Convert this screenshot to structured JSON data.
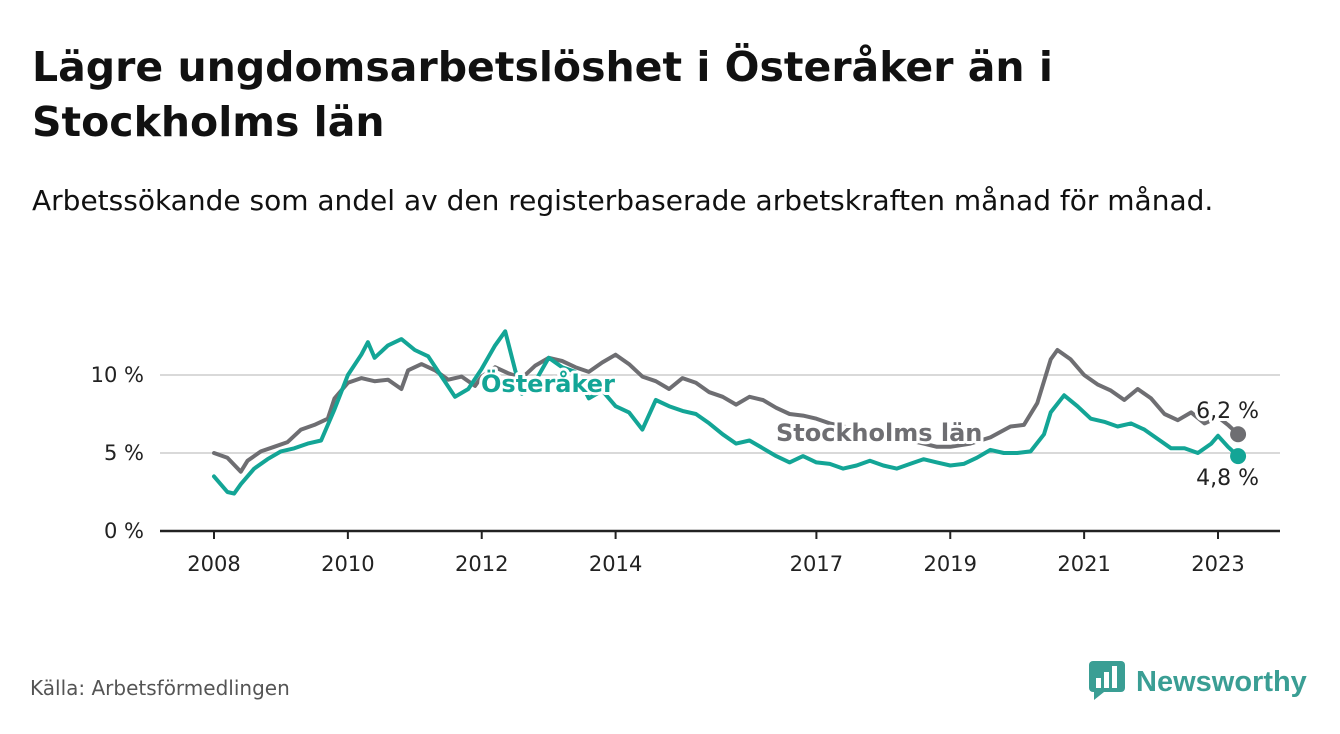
{
  "title": "Lägre ungdomsarbetslöshet i Österåker än i Stockholms län",
  "subtitle": "Arbetssökande som andel av den registerbaserade arbetskraften månad för månad.",
  "source": "Källa: Arbetsförmedlingen",
  "brand": {
    "name": "Newsworthy",
    "icon": "bar-chart-logo-icon",
    "color": "#3a9e94"
  },
  "colors": {
    "stockholm": "#6e6e72",
    "osteraker": "#13a596",
    "grid": "#d9d9d9",
    "axis": "#222222"
  },
  "chart_data": {
    "type": "line",
    "title": "Lägre ungdomsarbetslöshet i Österåker än i Stockholms län",
    "xlabel": "",
    "ylabel": "",
    "ylim": [
      0,
      14
    ],
    "xlim": [
      2008.0,
      2023.9
    ],
    "yticks": [
      {
        "value": 0,
        "label": "0 %"
      },
      {
        "value": 5,
        "label": "5 %"
      },
      {
        "value": 10,
        "label": "10 %"
      }
    ],
    "xticks": [
      {
        "value": 2008.0,
        "label": "2008"
      },
      {
        "value": 2010.0,
        "label": "2010"
      },
      {
        "value": 2012.0,
        "label": "2012"
      },
      {
        "value": 2014.0,
        "label": "2014"
      },
      {
        "value": 2017.0,
        "label": "2017"
      },
      {
        "value": 2019.0,
        "label": "2019"
      },
      {
        "value": 2021.0,
        "label": "2021"
      },
      {
        "value": 2023.0,
        "label": "2023"
      }
    ],
    "series": [
      {
        "name": "Stockholms län",
        "label": "Stockholms län",
        "end_label": "6,2 %",
        "end_value": 6.2,
        "points": [
          [
            2008.0,
            5.0
          ],
          [
            2008.2,
            4.7
          ],
          [
            2008.4,
            3.8
          ],
          [
            2008.5,
            4.5
          ],
          [
            2008.7,
            5.1
          ],
          [
            2008.9,
            5.4
          ],
          [
            2009.1,
            5.7
          ],
          [
            2009.3,
            6.5
          ],
          [
            2009.5,
            6.8
          ],
          [
            2009.7,
            7.2
          ],
          [
            2009.8,
            8.5
          ],
          [
            2010.0,
            9.5
          ],
          [
            2010.2,
            9.8
          ],
          [
            2010.4,
            9.6
          ],
          [
            2010.6,
            9.7
          ],
          [
            2010.8,
            9.1
          ],
          [
            2010.9,
            10.3
          ],
          [
            2011.1,
            10.7
          ],
          [
            2011.3,
            10.3
          ],
          [
            2011.5,
            9.7
          ],
          [
            2011.7,
            9.9
          ],
          [
            2011.9,
            9.3
          ],
          [
            2012.0,
            9.9
          ],
          [
            2012.2,
            10.5
          ],
          [
            2012.4,
            10.1
          ],
          [
            2012.6,
            9.8
          ],
          [
            2012.8,
            10.6
          ],
          [
            2013.0,
            11.1
          ],
          [
            2013.2,
            10.9
          ],
          [
            2013.4,
            10.5
          ],
          [
            2013.6,
            10.2
          ],
          [
            2013.8,
            10.8
          ],
          [
            2014.0,
            11.3
          ],
          [
            2014.2,
            10.7
          ],
          [
            2014.4,
            9.9
          ],
          [
            2014.6,
            9.6
          ],
          [
            2014.8,
            9.1
          ],
          [
            2015.0,
            9.8
          ],
          [
            2015.2,
            9.5
          ],
          [
            2015.4,
            8.9
          ],
          [
            2015.6,
            8.6
          ],
          [
            2015.8,
            8.1
          ],
          [
            2016.0,
            8.6
          ],
          [
            2016.2,
            8.4
          ],
          [
            2016.4,
            7.9
          ],
          [
            2016.6,
            7.5
          ],
          [
            2016.8,
            7.4
          ],
          [
            2017.0,
            7.2
          ],
          [
            2017.2,
            6.9
          ],
          [
            2017.4,
            6.7
          ],
          [
            2017.6,
            6.5
          ],
          [
            2017.8,
            6.3
          ],
          [
            2018.0,
            6.1
          ],
          [
            2018.2,
            5.9
          ],
          [
            2018.4,
            5.8
          ],
          [
            2018.6,
            5.6
          ],
          [
            2018.8,
            5.4
          ],
          [
            2019.0,
            5.4
          ],
          [
            2019.3,
            5.6
          ],
          [
            2019.6,
            6.0
          ],
          [
            2019.9,
            6.7
          ],
          [
            2020.1,
            6.8
          ],
          [
            2020.3,
            8.2
          ],
          [
            2020.5,
            11.0
          ],
          [
            2020.6,
            11.6
          ],
          [
            2020.8,
            11.0
          ],
          [
            2021.0,
            10.0
          ],
          [
            2021.2,
            9.4
          ],
          [
            2021.4,
            9.0
          ],
          [
            2021.6,
            8.4
          ],
          [
            2021.8,
            9.1
          ],
          [
            2022.0,
            8.5
          ],
          [
            2022.2,
            7.5
          ],
          [
            2022.4,
            7.1
          ],
          [
            2022.6,
            7.6
          ],
          [
            2022.8,
            6.9
          ],
          [
            2023.0,
            7.3
          ],
          [
            2023.15,
            6.8
          ],
          [
            2023.3,
            6.2
          ]
        ]
      },
      {
        "name": "Österåker",
        "label": "Österåker",
        "end_label": "4,8 %",
        "end_value": 4.8,
        "points": [
          [
            2008.0,
            3.5
          ],
          [
            2008.2,
            2.5
          ],
          [
            2008.3,
            2.4
          ],
          [
            2008.4,
            3.0
          ],
          [
            2008.6,
            4.0
          ],
          [
            2008.8,
            4.6
          ],
          [
            2009.0,
            5.1
          ],
          [
            2009.2,
            5.3
          ],
          [
            2009.4,
            5.6
          ],
          [
            2009.6,
            5.8
          ],
          [
            2009.8,
            7.8
          ],
          [
            2010.0,
            10.0
          ],
          [
            2010.2,
            11.3
          ],
          [
            2010.3,
            12.1
          ],
          [
            2010.4,
            11.1
          ],
          [
            2010.6,
            11.9
          ],
          [
            2010.8,
            12.3
          ],
          [
            2011.0,
            11.6
          ],
          [
            2011.2,
            11.2
          ],
          [
            2011.4,
            9.9
          ],
          [
            2011.6,
            8.6
          ],
          [
            2011.8,
            9.1
          ],
          [
            2012.0,
            10.4
          ],
          [
            2012.2,
            11.9
          ],
          [
            2012.35,
            12.8
          ],
          [
            2012.5,
            10.3
          ],
          [
            2012.6,
            8.8
          ],
          [
            2012.8,
            9.6
          ],
          [
            2013.0,
            11.1
          ],
          [
            2013.2,
            10.5
          ],
          [
            2013.4,
            10.2
          ],
          [
            2013.6,
            8.5
          ],
          [
            2013.8,
            9.0
          ],
          [
            2014.0,
            8.0
          ],
          [
            2014.2,
            7.6
          ],
          [
            2014.4,
            6.5
          ],
          [
            2014.6,
            8.4
          ],
          [
            2014.8,
            8.0
          ],
          [
            2015.0,
            7.7
          ],
          [
            2015.2,
            7.5
          ],
          [
            2015.4,
            6.9
          ],
          [
            2015.6,
            6.2
          ],
          [
            2015.8,
            5.6
          ],
          [
            2016.0,
            5.8
          ],
          [
            2016.2,
            5.3
          ],
          [
            2016.4,
            4.8
          ],
          [
            2016.6,
            4.4
          ],
          [
            2016.8,
            4.8
          ],
          [
            2017.0,
            4.4
          ],
          [
            2017.2,
            4.3
          ],
          [
            2017.4,
            4.0
          ],
          [
            2017.6,
            4.2
          ],
          [
            2017.8,
            4.5
          ],
          [
            2018.0,
            4.2
          ],
          [
            2018.2,
            4.0
          ],
          [
            2018.4,
            4.3
          ],
          [
            2018.6,
            4.6
          ],
          [
            2018.8,
            4.4
          ],
          [
            2019.0,
            4.2
          ],
          [
            2019.2,
            4.3
          ],
          [
            2019.4,
            4.7
          ],
          [
            2019.6,
            5.2
          ],
          [
            2019.8,
            5.0
          ],
          [
            2020.0,
            5.0
          ],
          [
            2020.2,
            5.1
          ],
          [
            2020.4,
            6.2
          ],
          [
            2020.5,
            7.6
          ],
          [
            2020.7,
            8.7
          ],
          [
            2020.9,
            8.0
          ],
          [
            2021.1,
            7.2
          ],
          [
            2021.3,
            7.0
          ],
          [
            2021.5,
            6.7
          ],
          [
            2021.7,
            6.9
          ],
          [
            2021.9,
            6.5
          ],
          [
            2022.1,
            5.9
          ],
          [
            2022.3,
            5.3
          ],
          [
            2022.5,
            5.3
          ],
          [
            2022.7,
            5.0
          ],
          [
            2022.9,
            5.6
          ],
          [
            2023.0,
            6.1
          ],
          [
            2023.15,
            5.4
          ],
          [
            2023.3,
            4.8
          ]
        ]
      }
    ]
  }
}
